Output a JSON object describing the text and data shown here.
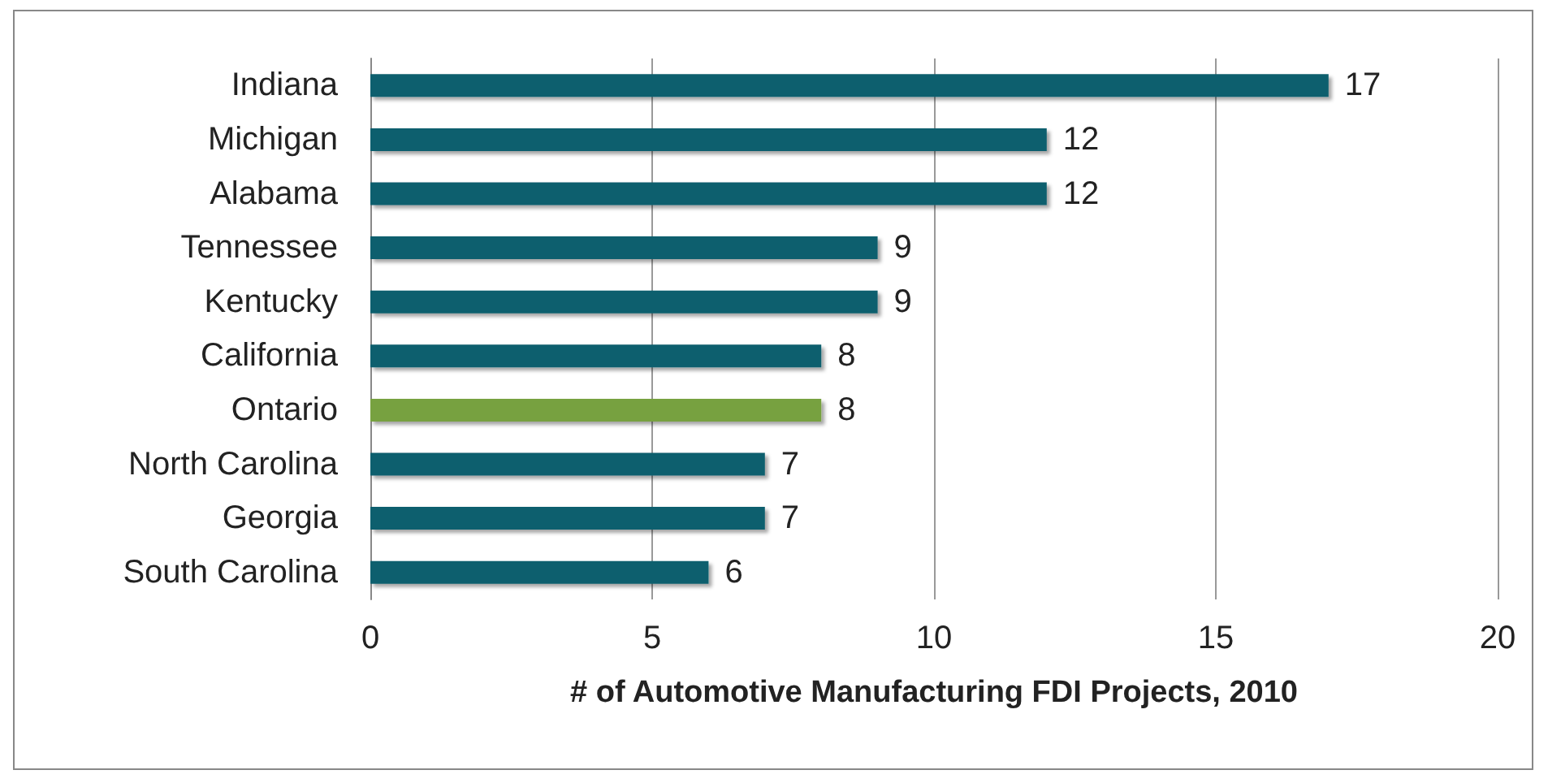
{
  "chart_data": {
    "type": "bar",
    "orientation": "horizontal",
    "xlabel": "# of Automotive Manufacturing FDI Projects, 2010",
    "categories": [
      "Indiana",
      "Michigan",
      "Alabama",
      "Tennessee",
      "Kentucky",
      "California",
      "Ontario",
      "North Carolina",
      "Georgia",
      "South Carolina"
    ],
    "values": [
      17,
      12,
      12,
      9,
      9,
      8,
      8,
      7,
      7,
      6
    ],
    "colors": [
      "#0e5f6e",
      "#0e5f6e",
      "#0e5f6e",
      "#0e5f6e",
      "#0e5f6e",
      "#0e5f6e",
      "#77a13f",
      "#0e5f6e",
      "#0e5f6e",
      "#0e5f6e"
    ],
    "xlim": [
      0,
      20
    ],
    "xticks": [
      0,
      5,
      10,
      15,
      20
    ],
    "grid": "x",
    "data_labels": true
  }
}
